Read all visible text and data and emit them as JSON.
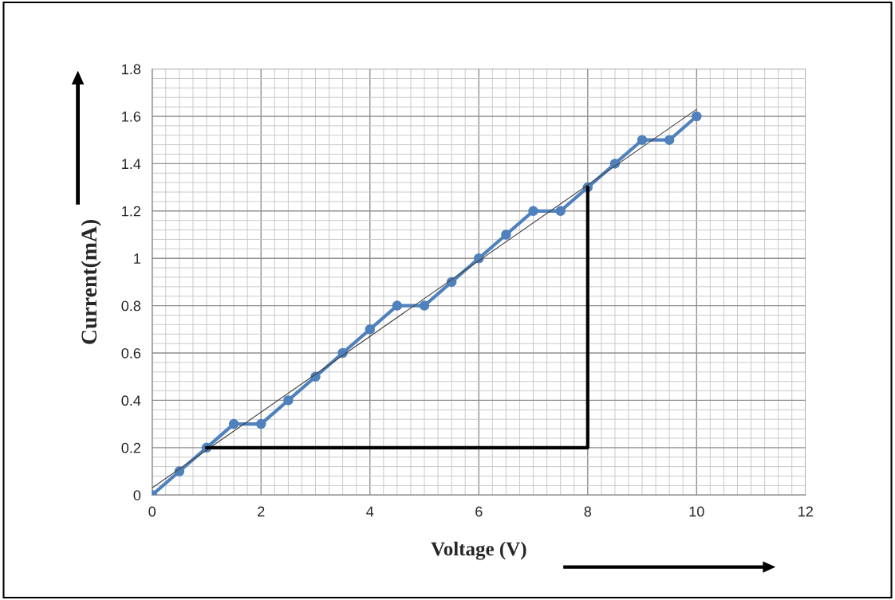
{
  "chart_data": {
    "type": "line",
    "xlabel": "Voltage (V)",
    "ylabel": "Current(mA)",
    "xlim": [
      0,
      12
    ],
    "xticks": [
      0,
      2,
      4,
      6,
      8,
      10,
      12
    ],
    "ylim": [
      0,
      1.8
    ],
    "yticks": [
      0,
      0.2,
      0.4,
      0.6,
      0.8,
      1,
      1.2,
      1.4,
      1.6,
      1.8
    ],
    "grid": true,
    "marker": "circle",
    "line_style": "solid",
    "series": [
      {
        "color": "#4f81bd",
        "x": [
          0,
          0.5,
          1,
          1.5,
          2,
          2.5,
          3,
          3.5,
          4,
          4.5,
          5,
          5.5,
          6,
          6.5,
          7,
          7.5,
          8,
          8.5,
          9,
          9.5,
          10
        ],
        "values": [
          0,
          0.1,
          0.2,
          0.3,
          0.3,
          0.4,
          0.5,
          0.6,
          0.7,
          0.8,
          0.8,
          0.9,
          1.0,
          1.1,
          1.2,
          1.2,
          1.3,
          1.4,
          1.5,
          1.5,
          1.6
        ]
      },
      {
        "color": "#404040",
        "x": [
          0,
          10
        ],
        "values": [
          0.03,
          1.63
        ],
        "marker": "none"
      },
      {
        "color": "#000000",
        "x": [
          1,
          8,
          8
        ],
        "values": [
          0.2,
          0.2,
          1.3
        ],
        "marker": "none"
      }
    ]
  }
}
